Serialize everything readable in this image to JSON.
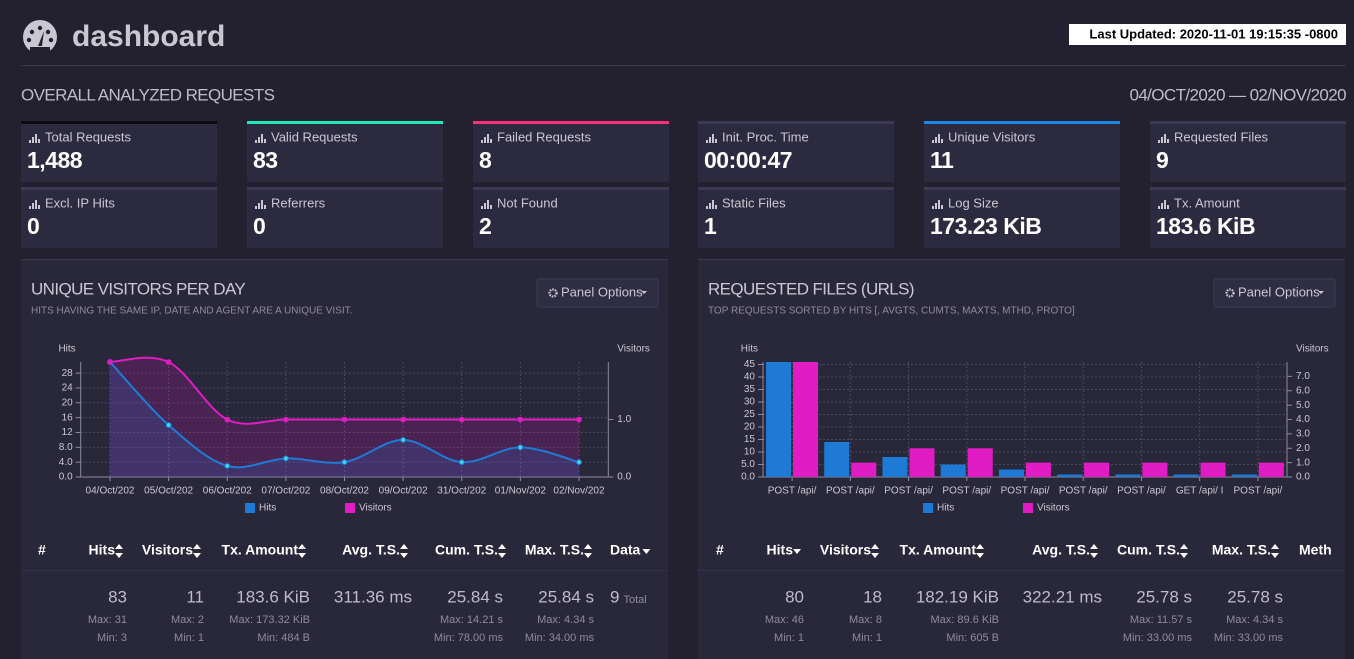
{
  "header": {
    "title": "dashboard",
    "last_updated": "Last Updated: 2020-11-01 19:15:35 -0800"
  },
  "overview": {
    "title": "OVERALL ANALYZED REQUESTS",
    "date_range": "04/OCT/2020 — 02/NOV/2020"
  },
  "cards": [
    {
      "label": "Total Requests",
      "value": "1,488",
      "accent": "#0c0b12"
    },
    {
      "label": "Valid Requests",
      "value": "83",
      "accent": "#1de9b6"
    },
    {
      "label": "Failed Requests",
      "value": "8",
      "accent": "#ff2d78"
    },
    {
      "label": "Init. Proc. Time",
      "value": "00:00:47",
      "accent": "#3b3a52"
    },
    {
      "label": "Unique Visitors",
      "value": "11",
      "accent": "#1e88e5"
    },
    {
      "label": "Requested Files",
      "value": "9",
      "accent": "#3b3a52"
    },
    {
      "label": "Excl. IP Hits",
      "value": "0",
      "accent": "#3b3a52"
    },
    {
      "label": "Referrers",
      "value": "0",
      "accent": "#3b3a52"
    },
    {
      "label": "Not Found",
      "value": "2",
      "accent": "#3b3a52"
    },
    {
      "label": "Static Files",
      "value": "1",
      "accent": "#3b3a52"
    },
    {
      "label": "Log Size",
      "value": "173.23 KiB",
      "accent": "#3b3a52"
    },
    {
      "label": "Tx. Amount",
      "value": "183.6 KiB",
      "accent": "#3b3a52"
    }
  ],
  "panels": [
    {
      "title": "UNIQUE VISITORS PER DAY",
      "subtitle": "HITS HAVING THE SAME IP, DATE AND AGENT ARE A UNIQUE VISIT.",
      "button": "Panel Options",
      "table": {
        "columns": [
          {
            "label": "#"
          },
          {
            "label": "Hits",
            "sort": "both",
            "main": "83",
            "max": "Max: 31",
            "min": "Min: 3"
          },
          {
            "label": "Visitors",
            "sort": "both",
            "main": "11",
            "max": "Max: 2",
            "min": "Min: 1"
          },
          {
            "label": "Tx. Amount",
            "sort": "both",
            "main": "183.6 KiB",
            "max": "Max: 173.32 KiB",
            "min": "Min: 484 B"
          },
          {
            "label": "Avg. T.S.",
            "sort": "both",
            "main": "311.36 ms"
          },
          {
            "label": "Cum. T.S.",
            "sort": "both",
            "main": "25.84 s",
            "max": "Max: 14.21 s",
            "min": "Min: 78.00 ms"
          },
          {
            "label": "Max. T.S.",
            "sort": "both",
            "main": "25.84 s",
            "max": "Max: 4.34 s",
            "min": "Min: 34.00 ms"
          },
          {
            "label": "Data",
            "sort": "desc",
            "main": "9",
            "note": "Total"
          }
        ]
      }
    },
    {
      "title": "REQUESTED FILES (URLS)",
      "subtitle": "TOP REQUESTS SORTED BY HITS [, AVGTS, CUMTS, MAXTS, MTHD, PROTO]",
      "button": "Panel Options",
      "table": {
        "columns": [
          {
            "label": "#"
          },
          {
            "label": "Hits",
            "sort": "desc",
            "main": "80",
            "max": "Max: 46",
            "min": "Min: 1"
          },
          {
            "label": "Visitors",
            "sort": "both",
            "main": "18",
            "max": "Max: 8",
            "min": "Min: 1"
          },
          {
            "label": "Tx. Amount",
            "sort": "both",
            "main": "182.19 KiB",
            "max": "Max: 89.6 KiB",
            "min": "Min: 605 B"
          },
          {
            "label": "Avg. T.S.",
            "sort": "both",
            "main": "322.21 ms"
          },
          {
            "label": "Cum. T.S.",
            "sort": "both",
            "main": "25.78 s",
            "max": "Max: 11.57 s",
            "min": "Min: 33.00 ms"
          },
          {
            "label": "Max. T.S.",
            "sort": "both",
            "main": "25.78 s",
            "max": "Max: 4.34 s",
            "min": "Min: 33.00 ms"
          },
          {
            "label": "Meth"
          }
        ]
      }
    }
  ],
  "chart_data": [
    {
      "type": "line",
      "ylabel": "Hits",
      "y2label": "Visitors",
      "categories": [
        "04/Oct/202",
        "05/Oct/202",
        "06/Oct/202",
        "07/Oct/202",
        "08/Oct/202",
        "09/Oct/202",
        "31/Oct/202",
        "01/Nov/202",
        "02/Nov/202"
      ],
      "series": [
        {
          "name": "Hits",
          "color": "#1f7ad6",
          "values": [
            31,
            14,
            3,
            5,
            4,
            10,
            4,
            8,
            4
          ]
        },
        {
          "name": "Visitors",
          "color": "#e01cc4",
          "axis": "y2",
          "values": [
            2,
            2,
            1,
            1,
            1,
            1,
            1,
            1,
            1
          ]
        }
      ],
      "ylim": [
        0,
        31
      ],
      "yticks": [
        {
          "value": 0,
          "label": "0.0"
        },
        {
          "value": 4,
          "label": "4.0"
        },
        {
          "value": 8,
          "label": "8.0"
        },
        12,
        16,
        20,
        24,
        28
      ],
      "y2lim": [
        0,
        2
      ],
      "y2ticks": [
        {
          "value": 0,
          "label": "0.0"
        },
        {
          "value": 1,
          "label": "1.0"
        }
      ],
      "grid": true
    },
    {
      "type": "bar",
      "ylabel": "Hits",
      "y2label": "Visitors",
      "categories": [
        "POST /api/",
        "POST /api/",
        "POST /api/",
        "POST /api/",
        "POST /api/",
        "POST /api/",
        "POST /api/",
        "GET /api/ I",
        "POST /api/"
      ],
      "series": [
        {
          "name": "Hits",
          "color": "#1f7ad6",
          "values": [
            46,
            14,
            8,
            5,
            3,
            1,
            1,
            1,
            1
          ]
        },
        {
          "name": "Visitors",
          "color": "#e01cc4",
          "axis": "y2",
          "values": [
            8,
            1,
            2,
            2,
            1,
            1,
            1,
            1,
            1
          ]
        }
      ],
      "ylim": [
        0,
        46
      ],
      "yticks": [
        {
          "value": 0,
          "label": "0.0"
        },
        {
          "value": 5,
          "label": "5.0"
        },
        10,
        15,
        20,
        25,
        30,
        35,
        40,
        45
      ],
      "y2lim": [
        0,
        8
      ],
      "y2ticks": [
        {
          "value": 0,
          "label": "0.0"
        },
        {
          "value": 1,
          "label": "1.0"
        },
        {
          "value": 2,
          "label": "2.0"
        },
        {
          "value": 3,
          "label": "3.0"
        },
        {
          "value": 4,
          "label": "4.0"
        },
        {
          "value": 5,
          "label": "5.0"
        },
        {
          "value": 6,
          "label": "6.0"
        },
        {
          "value": 7,
          "label": "7.0"
        }
      ],
      "grid": true
    }
  ]
}
